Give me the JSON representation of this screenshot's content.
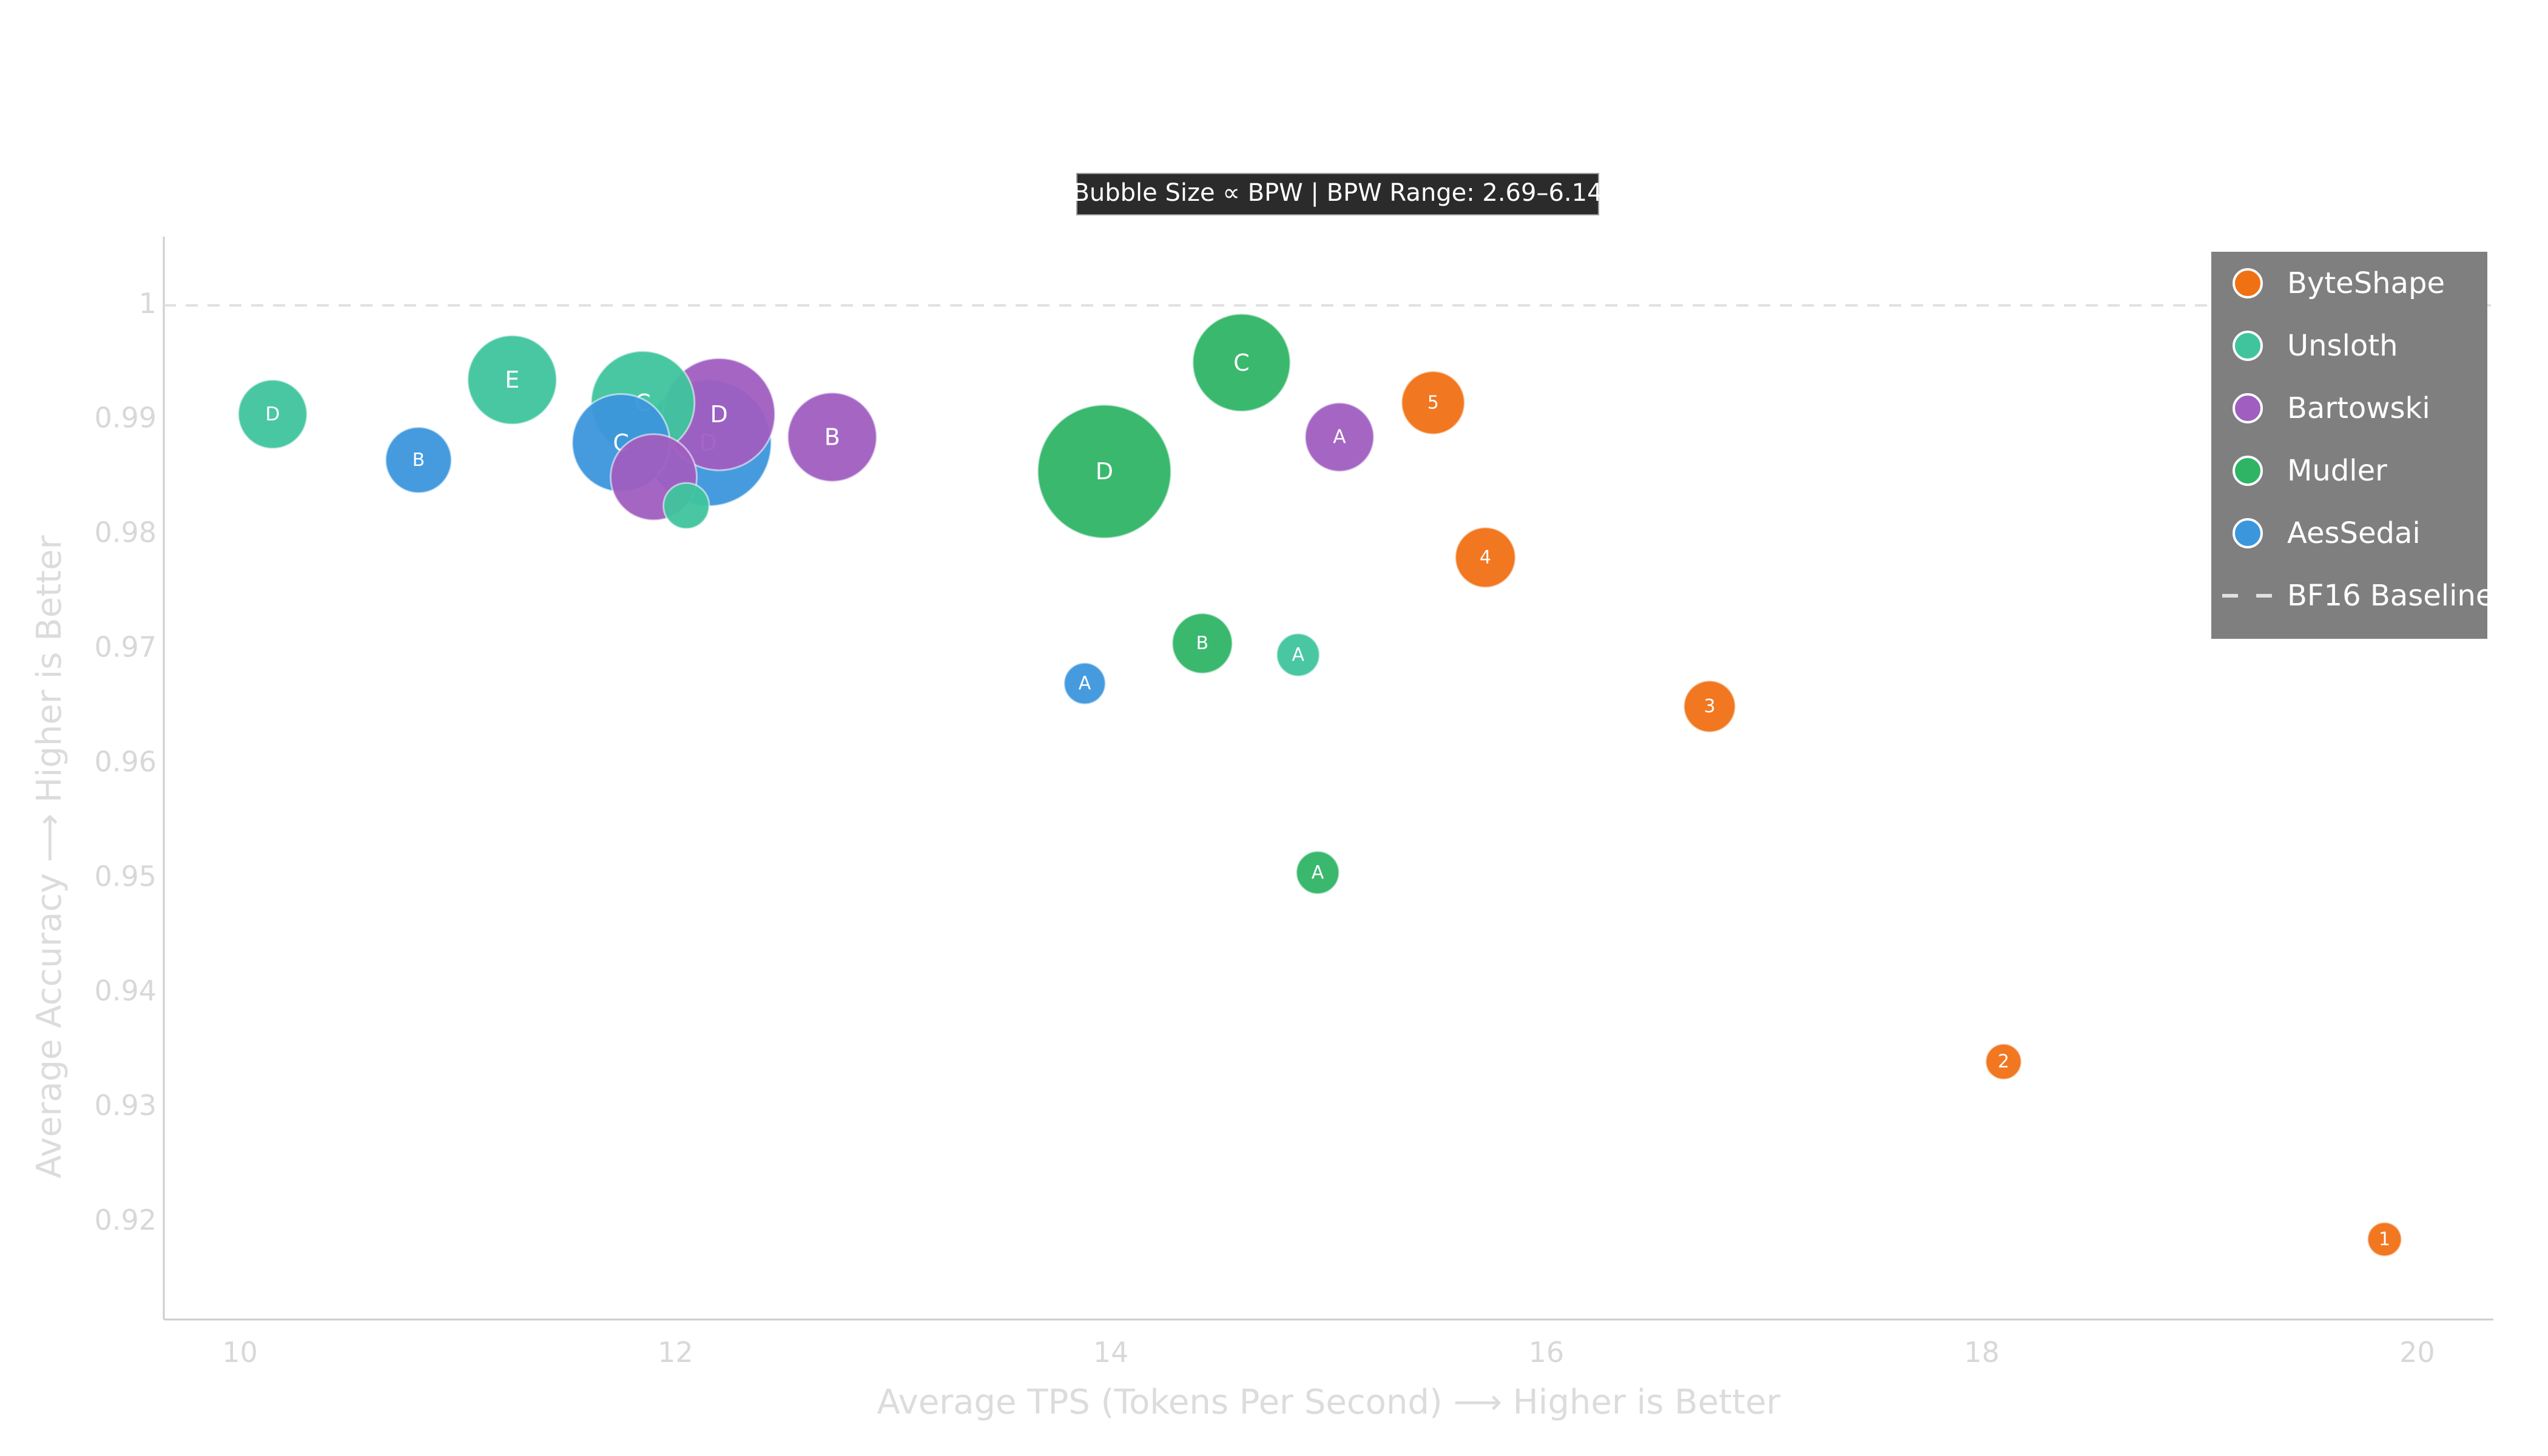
{
  "chart_data": {
    "type": "scatter",
    "annotation": "Bubble Size ∝ BPW | BPW Range: 2.69–6.14",
    "xlabel": "Average TPS (Tokens Per Second) ⟶ Higher is Better",
    "ylabel": "Average Accuracy ⟶ Higher is Better",
    "xlim": [
      9.65,
      20.35
    ],
    "ylim": [
      0.9115,
      1.006
    ],
    "x_ticks": [
      10,
      12,
      14,
      16,
      18,
      20
    ],
    "x_tick_labels": [
      "10",
      "12",
      "14",
      "16",
      "18",
      "20"
    ],
    "y_ticks": [
      0.92,
      0.93,
      0.94,
      0.95,
      0.96,
      0.97,
      0.98,
      0.99,
      1
    ],
    "y_tick_labels": [
      "0.92",
      "0.93",
      "0.94",
      "0.95",
      "0.96",
      "0.97",
      "0.98",
      "0.99",
      "1"
    ],
    "grid": false,
    "legend_position": "top-right",
    "baseline": {
      "name": "BF16 Baseline",
      "y": 1.0,
      "color": "#e0e0e0"
    },
    "bpw_range": [
      2.69,
      6.14
    ],
    "series": [
      {
        "name": "ByteShape",
        "color": "#f07014",
        "points": [
          {
            "label": "1",
            "x": 19.85,
            "y": 0.9185,
            "bpw": 2.69
          },
          {
            "label": "2",
            "x": 18.1,
            "y": 0.934,
            "bpw": 2.75
          },
          {
            "label": "3",
            "x": 16.75,
            "y": 0.965,
            "bpw": 3.3
          },
          {
            "label": "4",
            "x": 15.72,
            "y": 0.978,
            "bpw": 3.6
          },
          {
            "label": "5",
            "x": 15.48,
            "y": 0.9915,
            "bpw": 3.7
          }
        ]
      },
      {
        "name": "Unsloth",
        "color": "#3fc49e",
        "points": [
          {
            "label": "A",
            "x": 14.86,
            "y": 0.9695,
            "bpw": 3.0
          },
          {
            "label": "D",
            "x": 10.15,
            "y": 0.9905,
            "bpw": 3.9
          },
          {
            "label": "E",
            "x": 11.25,
            "y": 0.9935,
            "bpw": 4.6
          },
          {
            "label": "C",
            "x": 11.85,
            "y": 0.9915,
            "bpw": 5.1
          },
          {
            "label": "",
            "x": 12.05,
            "y": 0.9825,
            "bpw": 3.1
          }
        ]
      },
      {
        "name": "Bartowski",
        "color": "#a05ec0",
        "points": [
          {
            "label": "A",
            "x": 15.05,
            "y": 0.9885,
            "bpw": 3.9
          },
          {
            "label": "B",
            "x": 12.72,
            "y": 0.9885,
            "bpw": 4.6
          },
          {
            "label": "D",
            "x": 12.2,
            "y": 0.9905,
            "bpw": 5.4
          },
          {
            "label": "",
            "x": 11.9,
            "y": 0.985,
            "bpw": 4.5
          }
        ]
      },
      {
        "name": "Mudler",
        "color": "#2fb466",
        "points": [
          {
            "label": "A",
            "x": 14.95,
            "y": 0.9505,
            "bpw": 3.0
          },
          {
            "label": "B",
            "x": 14.42,
            "y": 0.9705,
            "bpw": 3.6
          },
          {
            "label": "C",
            "x": 14.6,
            "y": 0.995,
            "bpw": 4.9
          },
          {
            "label": "D",
            "x": 13.97,
            "y": 0.9855,
            "bpw": 6.14
          }
        ]
      },
      {
        "name": "AesSedai",
        "color": "#3c96dc",
        "points": [
          {
            "label": "A",
            "x": 13.88,
            "y": 0.967,
            "bpw": 2.95
          },
          {
            "label": "B",
            "x": 10.82,
            "y": 0.9865,
            "bpw": 3.8
          },
          {
            "label": "C",
            "x": 11.75,
            "y": 0.988,
            "bpw": 4.9
          },
          {
            "label": "D",
            "x": 12.15,
            "y": 0.988,
            "bpw": 5.9
          }
        ]
      }
    ]
  }
}
